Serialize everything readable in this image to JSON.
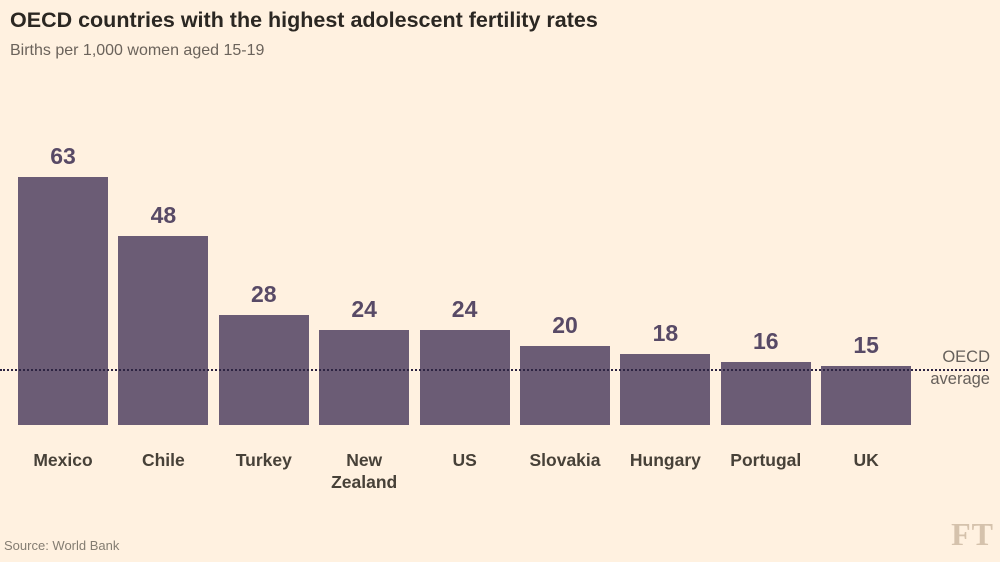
{
  "header": {
    "title": "OECD countries with the highest adolescent fertility rates",
    "subtitle": "Births per 1,000 women aged 15-19"
  },
  "chart_data": {
    "type": "bar",
    "title": "OECD countries with the highest adolescent fertility rates",
    "subtitle": "Births per 1,000 women aged 15-19",
    "categories": [
      "Mexico",
      "Chile",
      "Turkey",
      "New Zealand",
      "US",
      "Slovakia",
      "Hungary",
      "Portugal",
      "UK"
    ],
    "values": [
      63,
      48,
      28,
      24,
      24,
      20,
      18,
      16,
      15
    ],
    "data_labels_shown": true,
    "xlabel": "",
    "ylabel": "Births per 1,000 women aged 15-19",
    "ylim": [
      0,
      66
    ],
    "grid": false,
    "legend": false,
    "reference_line": {
      "value": 14,
      "label": "OECD average",
      "style": "dotted"
    }
  },
  "annotations": {
    "oecd_line1": "OECD",
    "oecd_line2": "average"
  },
  "footer": {
    "source": "Source: World Bank",
    "logo": "FT"
  },
  "colors": {
    "background": "#fff1e0",
    "bar": "#6b5c75",
    "value_label": "#584a66",
    "title": "#2b2722",
    "subtitle": "#6b635b",
    "axis_label": "#474138",
    "reference_line": "#2d2442",
    "reference_label": "#66605b",
    "source": "#847d72",
    "logo": "#d5c2ac"
  }
}
